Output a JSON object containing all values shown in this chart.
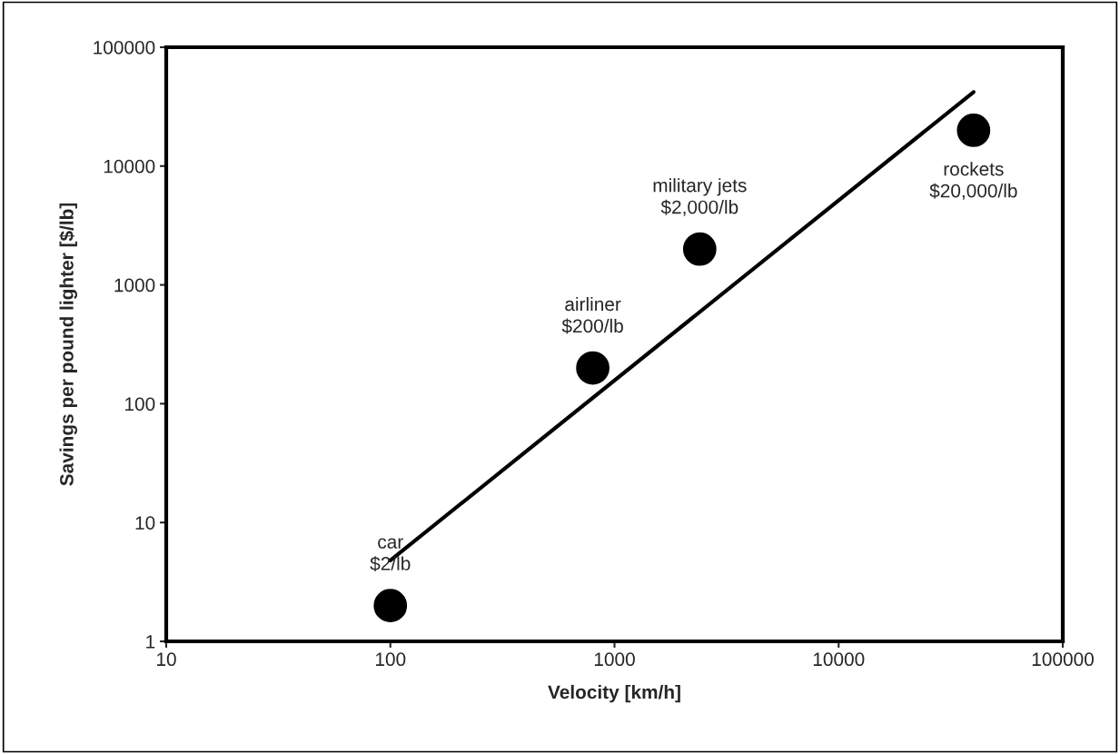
{
  "chart_data": {
    "type": "scatter",
    "xlabel": "Velocity [km/h]",
    "ylabel": "Savings per pound lighter [$/lb]",
    "log": "xy",
    "xlim": [
      10,
      100000
    ],
    "ylim": [
      1,
      100000
    ],
    "xticks": [
      10,
      100,
      1000,
      10000,
      100000
    ],
    "yticks": [
      1,
      10,
      100,
      1000,
      10000,
      100000
    ],
    "grid": false,
    "legend": false,
    "series": [
      {
        "color": "#000000",
        "marker": "circle",
        "x": [
          100,
          800,
          2400,
          40000
        ],
        "values": [
          2,
          200,
          2000,
          20000
        ]
      },
      {
        "type": "line",
        "color": "#000000",
        "marker": "none",
        "line_style": "solid",
        "x": [
          100,
          40000
        ],
        "values": [
          4.8,
          42000
        ]
      }
    ],
    "annotations": [
      {
        "text": "car\n$2/lb",
        "x": 100,
        "y": 2
      },
      {
        "text": "airliner\n$200/lb",
        "x": 800,
        "y": 200
      },
      {
        "text": "military jets\n$2,000/lb",
        "x": 2400,
        "y": 2000
      },
      {
        "text": "rockets\n$20,000/lb",
        "x": 40000,
        "y": 20000
      }
    ]
  }
}
